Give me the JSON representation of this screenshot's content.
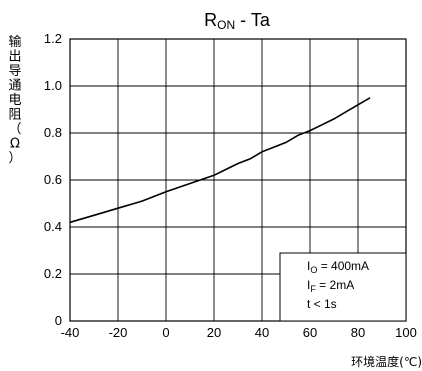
{
  "chart_data": {
    "type": "line",
    "title": {
      "base": "R",
      "sub": "ON",
      "rest": " - Ta"
    },
    "xlabel": "环境温度(℃)",
    "ylabel_chars": [
      "输",
      "出",
      "导",
      "通",
      "电",
      "阻",
      "（",
      "Ω",
      "）"
    ],
    "xlim": [
      -40,
      100
    ],
    "ylim": [
      0,
      1.2
    ],
    "x_ticks": [
      "-40",
      "-20",
      "0",
      "20",
      "40",
      "60",
      "80",
      "100"
    ],
    "y_ticks": [
      "0",
      "0.2",
      "0.4",
      "0.6",
      "0.8",
      "1.0",
      "1.2"
    ],
    "grid": true,
    "series": [
      {
        "x": [
          -40,
          -30,
          -20,
          -10,
          0,
          10,
          20,
          25,
          30,
          35,
          40,
          45,
          50,
          55,
          60,
          65,
          70,
          75,
          80,
          85
        ],
        "y": [
          0.42,
          0.45,
          0.48,
          0.51,
          0.55,
          0.585,
          0.62,
          0.645,
          0.67,
          0.69,
          0.72,
          0.74,
          0.76,
          0.79,
          0.81,
          0.835,
          0.86,
          0.89,
          0.92,
          0.95
        ]
      }
    ],
    "legend_lines": [
      {
        "base": "I",
        "sub": "O",
        "rest": " = 400mA"
      },
      {
        "base": "I",
        "sub": "F",
        "rest": " = 2mA"
      },
      {
        "base": "t < 1s",
        "sub": "",
        "rest": ""
      }
    ]
  }
}
